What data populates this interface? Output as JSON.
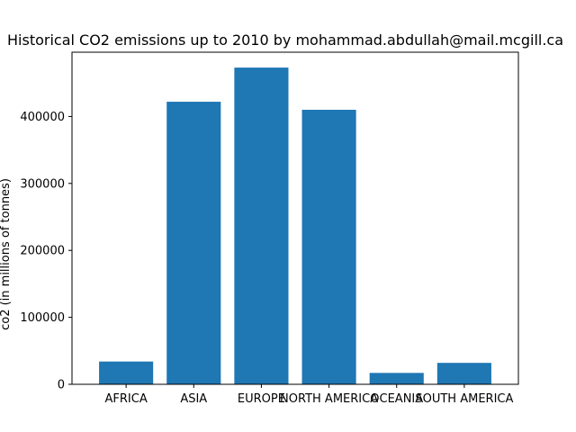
{
  "chart_data": {
    "type": "bar",
    "title": "Historical CO2 emissions up to 2010 by mohammad.abdullah@mail.mcgill.ca",
    "xlabel": "",
    "ylabel": "co2 (in millions of tonnes)",
    "categories": [
      "AFRICA",
      "ASIA",
      "EUROPE",
      "NORTH AMERICA",
      "OCEANIA",
      "SOUTH AMERICA"
    ],
    "values": [
      34000,
      422000,
      473000,
      410000,
      17000,
      32000
    ],
    "ylim": [
      0,
      496000
    ],
    "yticks": [
      0,
      100000,
      200000,
      300000,
      400000
    ],
    "ytick_labels": [
      "0",
      "100000",
      "200000",
      "300000",
      "400000"
    ],
    "bar_color": "#1f77b4",
    "grid": false,
    "legend": "none"
  }
}
